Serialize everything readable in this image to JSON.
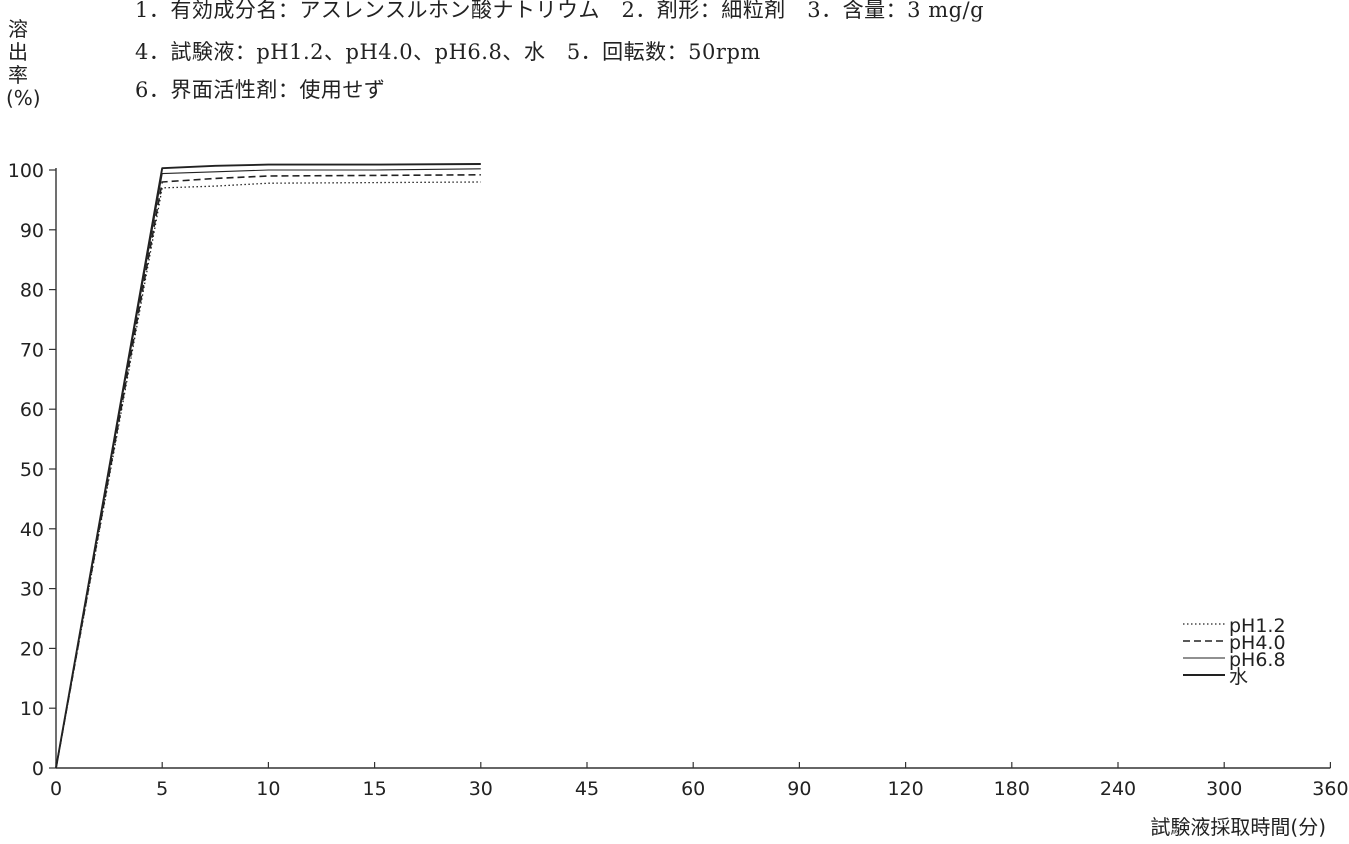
{
  "conditions": {
    "line1": "1．有効成分名：アスレンスルホン酸ナトリウム　2．剤形：細粒剤　3．含量：3 mg/g",
    "line2": "4．試験液：pH1.2、pH4.0、pH6.8、水　5．回転数：50rpm",
    "line3": "6．界面活性剤：使用せず"
  },
  "chart_data": {
    "type": "line",
    "title": "",
    "xlabel": "試験液採取時間(分)",
    "ylabel": "溶出率(%)",
    "x_categories": [
      "0",
      "5",
      "10",
      "15",
      "30",
      "45",
      "60",
      "90",
      "120",
      "180",
      "240",
      "300",
      "360"
    ],
    "y_ticks": [
      "0",
      "10",
      "20",
      "30",
      "40",
      "50",
      "60",
      "70",
      "80",
      "90",
      "100"
    ],
    "ylim": [
      0,
      100
    ],
    "grid": false,
    "legend_position": "bottom-right",
    "series": [
      {
        "name": "pH1.2",
        "style": "dotted",
        "x": [
          0,
          5,
          7.5,
          10,
          15,
          30
        ],
        "y": [
          0,
          97,
          97.3,
          97.8,
          97.9,
          98.0
        ]
      },
      {
        "name": "pH4.0",
        "style": "dashed",
        "x": [
          0,
          5,
          7.5,
          10,
          15,
          30
        ],
        "y": [
          0,
          98,
          98.6,
          99.0,
          99.1,
          99.2
        ]
      },
      {
        "name": "pH6.8",
        "style": "solid-thin",
        "x": [
          0,
          5,
          7.5,
          10,
          15,
          30
        ],
        "y": [
          0,
          99.4,
          99.7,
          100.0,
          100.0,
          100.2
        ]
      },
      {
        "name": "水",
        "style": "solid",
        "x": [
          0,
          5,
          7.5,
          10,
          15,
          30
        ],
        "y": [
          0,
          100.3,
          100.7,
          100.9,
          100.9,
          101.0
        ]
      }
    ]
  }
}
